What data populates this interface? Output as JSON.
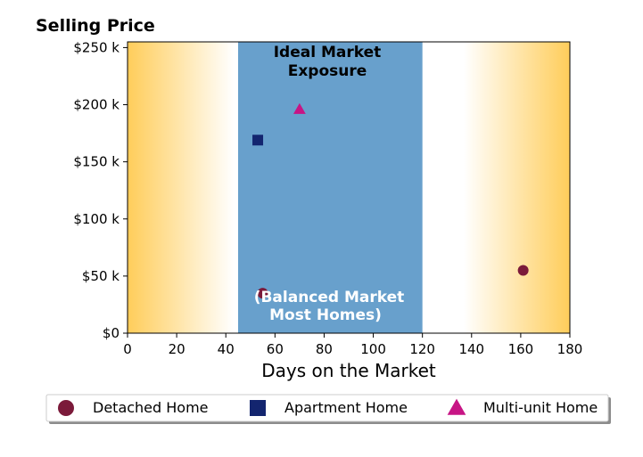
{
  "chart_data": {
    "type": "scatter",
    "ylabel": "Selling Price",
    "xlabel": "Days on the Market",
    "xlim": [
      0,
      180
    ],
    "ylim": [
      0,
      255000
    ],
    "x_ticks": [
      0,
      20,
      40,
      60,
      80,
      100,
      120,
      140,
      160,
      180
    ],
    "x_tick_labels": [
      "0",
      "20",
      "40",
      "60",
      "80",
      "100",
      "120",
      "140",
      "160",
      "180"
    ],
    "y_ticks": [
      0,
      50000,
      100000,
      150000,
      200000,
      250000
    ],
    "y_tick_labels": [
      "$0",
      "$50 k",
      "$100 k",
      "$150 k",
      "$200 k",
      "$250 k"
    ],
    "grid": false,
    "legend_position": "bottom",
    "band": {
      "x_range": [
        45,
        120
      ],
      "color": "#68a0cc",
      "title_lines": [
        "Ideal Market",
        "Exposure"
      ],
      "note_lines": [
        "(Balanced Market",
        "Most Homes)"
      ]
    },
    "background_gradient": {
      "edge_color": "#ffcd5a",
      "center_color": "#ffffff"
    },
    "series": [
      {
        "name": "Detached Home",
        "marker": "circle",
        "color": "#7b1a3a",
        "points": [
          {
            "x": 55,
            "y": 35000
          },
          {
            "x": 161,
            "y": 55000
          }
        ]
      },
      {
        "name": "Apartment Home",
        "marker": "square",
        "color": "#13256f",
        "points": [
          {
            "x": 53,
            "y": 169000
          }
        ]
      },
      {
        "name": "Multi-unit Home",
        "marker": "triangle",
        "color": "#c71585",
        "points": [
          {
            "x": 70,
            "y": 196000
          }
        ]
      }
    ]
  }
}
